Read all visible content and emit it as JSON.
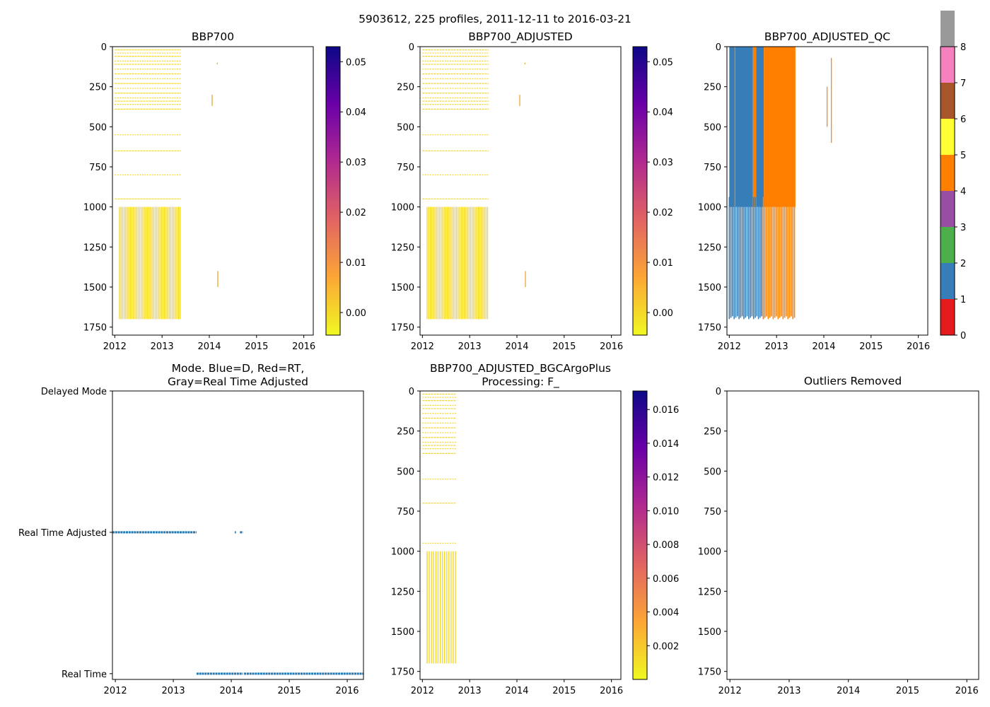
{
  "figure": {
    "suptitle": "5903612, 225 profiles, 2011-12-11 to 2016-03-21"
  },
  "chart_data": [
    {
      "id": "bbp700",
      "type": "heatmap",
      "title": "BBP700",
      "xlim": [
        2011.95,
        2016.2
      ],
      "ylim": [
        1800,
        0
      ],
      "xticks": [
        2012,
        2013,
        2014,
        2015,
        2016
      ],
      "xtick_labels": [
        "2012",
        "2013",
        "2014",
        "2015",
        "2016"
      ],
      "yticks": [
        0,
        250,
        500,
        750,
        1000,
        1250,
        1500,
        1750
      ],
      "ytick_labels": [
        "0",
        "250",
        "500",
        "750",
        "1000",
        "1250",
        "1500",
        "1750"
      ],
      "colorbar": {
        "cmap": "plasma_r",
        "range": [
          -0.0045,
          0.053
        ],
        "ticks": [
          0.0,
          0.01,
          0.02,
          0.03,
          0.04,
          0.05
        ],
        "tick_labels": [
          "0.00",
          "0.01",
          "0.02",
          "0.03",
          "0.04",
          "0.05"
        ]
      },
      "shallow_profiles": {
        "start": 2012.0,
        "end": 2013.4,
        "depth_range": [
          20,
          400
        ],
        "levels": [
          20,
          40,
          60,
          90,
          110,
          140,
          170,
          200,
          230,
          260,
          290,
          320,
          340,
          360,
          390,
          550,
          650,
          800,
          950
        ]
      },
      "deep_profiles": {
        "start": 2012.1,
        "end": 2013.38,
        "count": 40,
        "depth_range": [
          1000,
          1700
        ]
      },
      "isolated_marks": [
        {
          "x": 2014.18,
          "depth_range": [
            1400,
            1500
          ]
        },
        {
          "x": 2014.06,
          "depth_range": [
            300,
            370
          ]
        },
        {
          "x": 2014.17,
          "depth_range": [
            100,
            110
          ]
        }
      ]
    },
    {
      "id": "bbp700_adjusted",
      "type": "heatmap",
      "title": "BBP700_ADJUSTED",
      "xlim": [
        2011.95,
        2016.2
      ],
      "ylim": [
        1800,
        0
      ],
      "xticks": [
        2012,
        2013,
        2014,
        2015,
        2016
      ],
      "xtick_labels": [
        "2012",
        "2013",
        "2014",
        "2015",
        "2016"
      ],
      "yticks": [
        0,
        250,
        500,
        750,
        1000,
        1250,
        1500,
        1750
      ],
      "ytick_labels": [
        "0",
        "250",
        "500",
        "750",
        "1000",
        "1250",
        "1500",
        "1750"
      ],
      "colorbar": {
        "cmap": "plasma_r",
        "range": [
          -0.0045,
          0.053
        ],
        "ticks": [
          0.0,
          0.01,
          0.02,
          0.03,
          0.04,
          0.05
        ],
        "tick_labels": [
          "0.00",
          "0.01",
          "0.02",
          "0.03",
          "0.04",
          "0.05"
        ]
      },
      "shallow_profiles": {
        "start": 2012.0,
        "end": 2013.4,
        "depth_range": [
          20,
          400
        ],
        "levels": [
          20,
          40,
          60,
          90,
          110,
          140,
          170,
          200,
          230,
          260,
          290,
          320,
          340,
          360,
          390,
          550,
          650,
          800,
          950
        ]
      },
      "deep_profiles": {
        "start": 2012.1,
        "end": 2013.38,
        "count": 40,
        "depth_range": [
          1000,
          1700
        ]
      },
      "isolated_marks": [
        {
          "x": 2014.18,
          "depth_range": [
            1400,
            1500
          ]
        },
        {
          "x": 2014.06,
          "depth_range": [
            300,
            370
          ]
        },
        {
          "x": 2014.17,
          "depth_range": [
            100,
            110
          ]
        }
      ]
    },
    {
      "id": "bbp700_adjusted_qc",
      "type": "heatmap",
      "title": "BBP700_ADJUSTED_QC",
      "xlim": [
        2011.95,
        2016.2
      ],
      "ylim": [
        1800,
        0
      ],
      "xticks": [
        2012,
        2013,
        2014,
        2015,
        2016
      ],
      "xtick_labels": [
        "2012",
        "2013",
        "2014",
        "2015",
        "2016"
      ],
      "yticks": [
        0,
        250,
        500,
        750,
        1000,
        1250,
        1500,
        1750
      ],
      "ytick_labels": [
        "0",
        "250",
        "500",
        "750",
        "1000",
        "1250",
        "1500",
        "1750"
      ],
      "colorbar": {
        "cmap": "categorical",
        "range": [
          0,
          8
        ],
        "ticks": [
          0,
          1,
          2,
          3,
          4,
          5,
          6,
          7,
          8
        ],
        "tick_labels": [
          "0",
          "1",
          "2",
          "3",
          "4",
          "5",
          "6",
          "7",
          "8"
        ],
        "category_colors": [
          "#e41a1c",
          "#377eb8",
          "#4daf4a",
          "#984ea3",
          "#ff7f00",
          "#ffff33",
          "#a65628",
          "#f781bf",
          "#999999"
        ]
      },
      "blocks": [
        {
          "flag": 1,
          "start": 2012.0,
          "end": 2012.5,
          "depth_range": [
            0,
            1000
          ]
        },
        {
          "flag": 4,
          "start": 2012.5,
          "end": 2012.57,
          "depth_range": [
            0,
            1000
          ]
        },
        {
          "flag": 1,
          "start": 2012.57,
          "end": 2012.73,
          "depth_range": [
            0,
            1000
          ]
        },
        {
          "flag": 4,
          "start": 2012.73,
          "end": 2013.4,
          "depth_range": [
            0,
            1000
          ]
        }
      ],
      "deep_lines": [
        {
          "flag": 1,
          "start": 2012.0,
          "end": 2012.72,
          "count": 22,
          "depth_range": [
            1000,
            1700
          ]
        },
        {
          "flag": 4,
          "start": 2012.72,
          "end": 2013.38,
          "count": 20,
          "depth_range": [
            1000,
            1700
          ]
        }
      ],
      "isolated_marks": [
        {
          "flag": 4,
          "x": 2012.12,
          "depth_range": [
            0,
            1000
          ]
        },
        {
          "flag": 4,
          "x": 2014.07,
          "depth_range": [
            250,
            500
          ]
        },
        {
          "flag": 4,
          "x": 2014.16,
          "depth_range": [
            70,
            600
          ]
        }
      ]
    },
    {
      "id": "mode",
      "type": "scatter",
      "title": "Mode. Blue=D, Red=RT,\nGray=Real Time Adjusted",
      "title_lines": [
        "Mode. Blue=D, Red=RT,",
        "Gray=Real Time Adjusted"
      ],
      "xlim": [
        2011.95,
        2016.28
      ],
      "xticks": [
        2012,
        2013,
        2014,
        2015,
        2016
      ],
      "xtick_labels": [
        "2012",
        "2013",
        "2014",
        "2015",
        "2016"
      ],
      "ytick_labels": [
        "Delayed Mode",
        "Real Time Adjusted",
        "Real Time"
      ],
      "series": [
        {
          "name": "Real Time Adjusted",
          "segments": [
            [
              2011.95,
              2013.4
            ],
            [
              2014.06,
              2014.08
            ],
            [
              2014.15,
              2014.2
            ]
          ]
        },
        {
          "name": "Real Time",
          "segments": [
            [
              2013.4,
              2014.2
            ],
            [
              2014.22,
              2016.28
            ]
          ]
        }
      ],
      "color": "#1f77b4"
    },
    {
      "id": "bbp700_adjusted_bgcargoplus",
      "type": "heatmap",
      "title": "BBP700_ADJUSTED_BGCArgoPlus\nProcessing: F_",
      "title_lines": [
        "BBP700_ADJUSTED_BGCArgoPlus",
        "Processing: F_"
      ],
      "xlim": [
        2011.95,
        2016.2
      ],
      "ylim": [
        1800,
        0
      ],
      "xticks": [
        2012,
        2013,
        2014,
        2015,
        2016
      ],
      "xtick_labels": [
        "2012",
        "2013",
        "2014",
        "2015",
        "2016"
      ],
      "yticks": [
        0,
        250,
        500,
        750,
        1000,
        1250,
        1500,
        1750
      ],
      "ytick_labels": [
        "0",
        "250",
        "500",
        "750",
        "1000",
        "1250",
        "1500",
        "1750"
      ],
      "colorbar": {
        "cmap": "plasma_r",
        "range": [
          0.0,
          0.0171
        ],
        "ticks": [
          0.002,
          0.004,
          0.006,
          0.008,
          0.01,
          0.012,
          0.014,
          0.016
        ],
        "tick_labels": [
          "0.002",
          "0.004",
          "0.006",
          "0.008",
          "0.010",
          "0.012",
          "0.014",
          "0.016"
        ]
      },
      "shallow_profiles": {
        "start": 2012.0,
        "end": 2012.72,
        "depth_range": [
          20,
          400
        ],
        "levels": [
          20,
          40,
          60,
          90,
          110,
          140,
          170,
          200,
          230,
          260,
          290,
          320,
          340,
          360,
          390,
          550,
          700,
          950
        ]
      },
      "deep_profiles": {
        "start": 2012.1,
        "end": 2012.7,
        "count": 14,
        "depth_range": [
          1000,
          1700
        ]
      }
    },
    {
      "id": "outliers_removed",
      "type": "heatmap",
      "title": "Outliers Removed",
      "xlim": [
        2011.95,
        2016.2
      ],
      "ylim": [
        1800,
        0
      ],
      "xticks": [
        2012,
        2013,
        2014,
        2015,
        2016
      ],
      "xtick_labels": [
        "2012",
        "2013",
        "2014",
        "2015",
        "2016"
      ],
      "yticks": [
        0,
        250,
        500,
        750,
        1000,
        1250,
        1500,
        1750
      ],
      "ytick_labels": [
        "0",
        "250",
        "500",
        "750",
        "1000",
        "1250",
        "1500",
        "1750"
      ]
    }
  ]
}
